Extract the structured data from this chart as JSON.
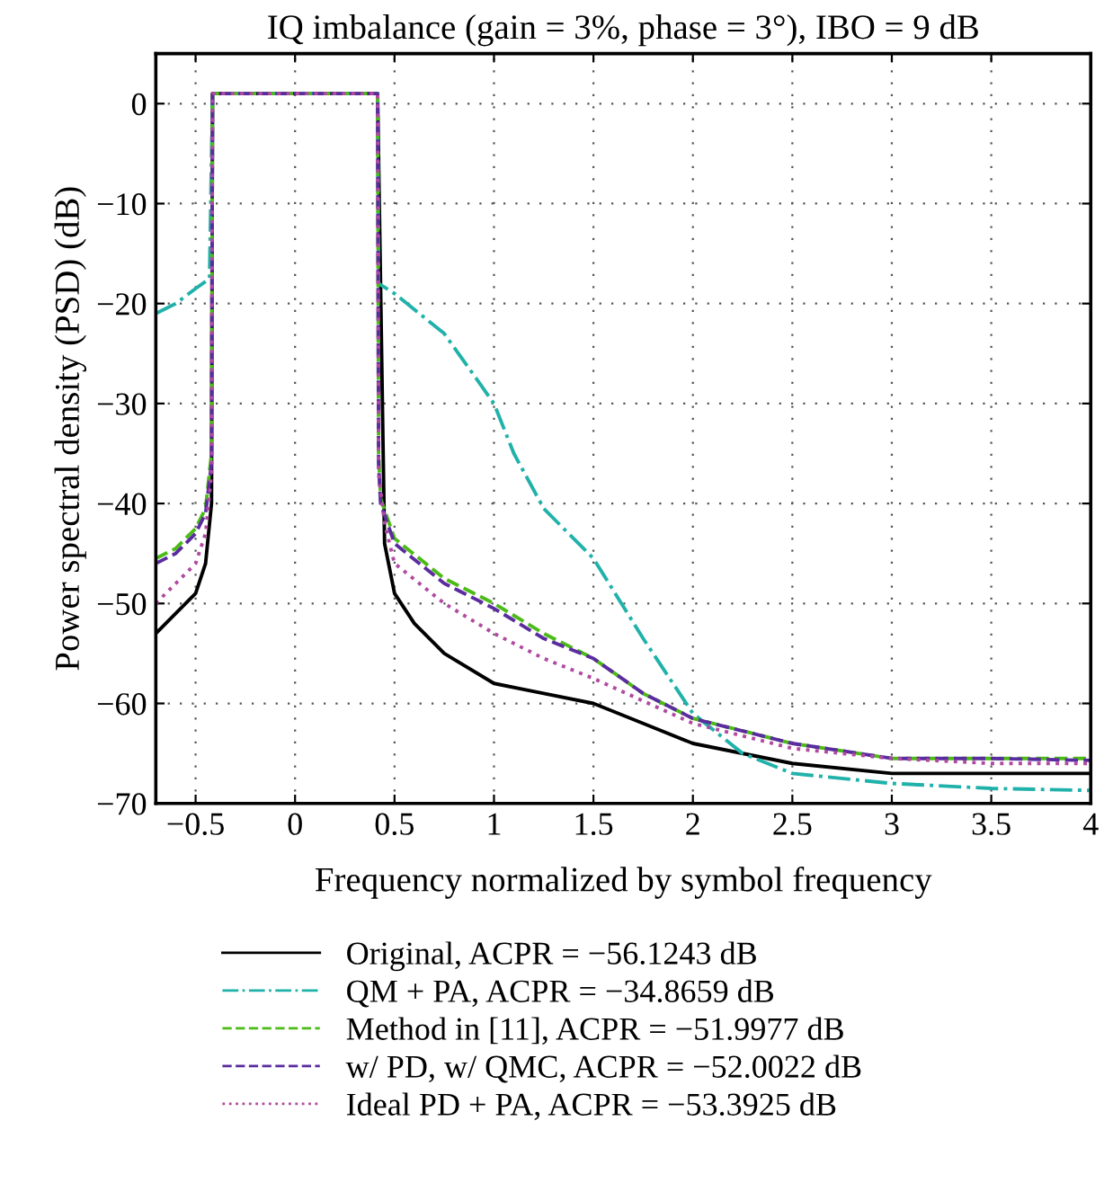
{
  "chart_data": {
    "type": "line",
    "title": "IQ imbalance (gain = 3%, phase = 3°), IBO = 9 dB",
    "xlabel": "Frequency normalized by symbol frequency",
    "ylabel": "Power spectral density (PSD) (dB)",
    "xlim": [
      -0.7,
      4
    ],
    "ylim": [
      -70,
      5
    ],
    "xticks": [
      {
        "value": -0.5,
        "label": "−0.5"
      },
      0,
      0.5,
      1,
      1.5,
      2,
      2.5,
      3,
      3.5,
      4
    ],
    "yticks": [
      {
        "value": -70,
        "label": "−70"
      },
      {
        "value": -60,
        "label": "−60"
      },
      {
        "value": -50,
        "label": "−50"
      },
      {
        "value": -40,
        "label": "−40"
      },
      {
        "value": -30,
        "label": "−30"
      },
      {
        "value": -20,
        "label": "−20"
      },
      {
        "value": -10,
        "label": "−10"
      },
      0
    ],
    "grid": true,
    "legend": "bottom",
    "marker": "none",
    "series": [
      {
        "name": "Original, ACPR = −56.1243 dB",
        "color": "#000000",
        "line_style": "solid",
        "x": [
          -0.7,
          -0.6,
          -0.5,
          -0.45,
          -0.42,
          -0.415,
          -0.2,
          0,
          0.2,
          0.415,
          0.45,
          0.5,
          0.6,
          0.75,
          1.0,
          1.25,
          1.5,
          1.75,
          2.0,
          2.5,
          3.0,
          3.5,
          4.0
        ],
        "values": [
          -53,
          -51,
          -49,
          -46,
          -40,
          1,
          1,
          1,
          1,
          1,
          -44,
          -49,
          -52,
          -55,
          -58,
          -59,
          -60,
          -62,
          -64,
          -66,
          -67,
          -67,
          -67
        ]
      },
      {
        "name": "QM + PA, ACPR = −34.8659 dB",
        "color": "#20b2aa",
        "line_style": "dashdot",
        "x": [
          -0.7,
          -0.6,
          -0.5,
          -0.43,
          -0.415,
          -0.2,
          0,
          0.2,
          0.415,
          0.42,
          0.5,
          0.75,
          1.0,
          1.1,
          1.25,
          1.5,
          1.75,
          2.0,
          2.25,
          2.5,
          3.0,
          3.5,
          4.0
        ],
        "values": [
          -21,
          -20,
          -18.5,
          -17.5,
          1,
          1,
          1,
          1,
          1,
          -18,
          -19,
          -23,
          -30,
          -35,
          -40.5,
          -45.5,
          -53.5,
          -61,
          -65,
          -67,
          -68,
          -68.5,
          -68.7
        ]
      },
      {
        "name": "Method in [11], ACPR = −51.9977 dB",
        "color": "#4cbb17",
        "line_style": "dashed",
        "x": [
          -0.7,
          -0.6,
          -0.5,
          -0.45,
          -0.42,
          -0.415,
          -0.2,
          0,
          0.2,
          0.415,
          0.42,
          0.43,
          0.5,
          0.75,
          1.0,
          1.25,
          1.5,
          1.75,
          2.0,
          2.5,
          3.0,
          3.5,
          4.0
        ],
        "values": [
          -45.5,
          -44.5,
          -42.5,
          -40.5,
          -35,
          1,
          1,
          1,
          1,
          1,
          -35,
          -39.5,
          -43.5,
          -47.5,
          -50,
          -53,
          -55.5,
          -59,
          -61.5,
          -64,
          -65.5,
          -65.5,
          -65.5
        ]
      },
      {
        "name": "w/ PD, w/ QMC, ACPR = −52.0022 dB",
        "color": "#5b2c9f",
        "line_style": "dashed",
        "x": [
          -0.7,
          -0.6,
          -0.5,
          -0.45,
          -0.42,
          -0.415,
          -0.2,
          0,
          0.2,
          0.415,
          0.42,
          0.43,
          0.5,
          0.75,
          1.0,
          1.25,
          1.5,
          1.75,
          2.0,
          2.5,
          3.0,
          3.5,
          4.0
        ],
        "values": [
          -46,
          -45,
          -43,
          -41,
          -36,
          1,
          1,
          1,
          1,
          1,
          -36,
          -40,
          -44,
          -48,
          -50.5,
          -53.5,
          -55.5,
          -59,
          -61.5,
          -64,
          -65.5,
          -65.5,
          -65.7
        ]
      },
      {
        "name": "Ideal PD + PA, ACPR = −53.3925 dB",
        "color": "#b04aa0",
        "line_style": "dotted",
        "x": [
          -0.7,
          -0.6,
          -0.5,
          -0.45,
          -0.42,
          -0.415,
          -0.2,
          0,
          0.2,
          0.415,
          0.42,
          0.45,
          0.5,
          0.75,
          1.0,
          1.25,
          1.5,
          2.0,
          2.5,
          3.0,
          3.5,
          4.0
        ],
        "values": [
          -50,
          -48,
          -46,
          -43,
          -37,
          1,
          1,
          1,
          1,
          1,
          -37,
          -42,
          -46,
          -50,
          -53,
          -55.5,
          -57.5,
          -62,
          -64.5,
          -65.5,
          -66,
          -66
        ]
      }
    ]
  }
}
